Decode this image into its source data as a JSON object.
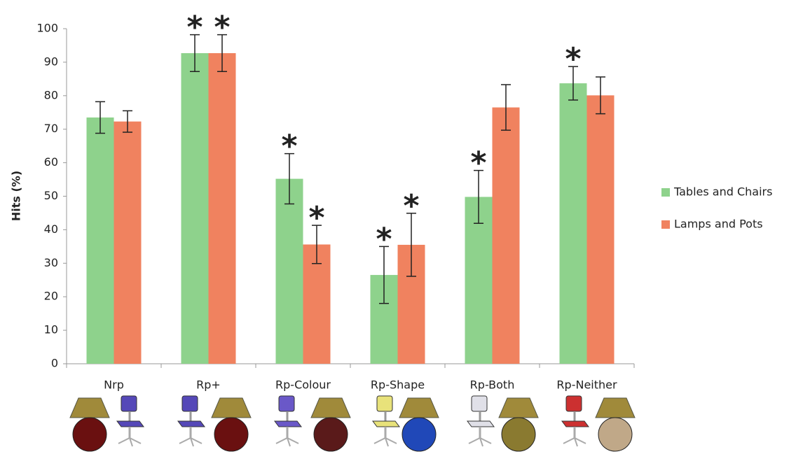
{
  "chart_data": {
    "type": "bar",
    "y_label": "Hits (%)",
    "categories": [
      "Nrp",
      "Rp+",
      "Rp-Colour",
      "Rp-Shape",
      "Rp-Both",
      "Rp-Neither"
    ],
    "series": [
      {
        "name": "Tables and Chairs",
        "color": "#8ed28c",
        "values": [
          73.5,
          92.7,
          55.2,
          26.5,
          49.8,
          83.7
        ],
        "errors": [
          4.7,
          5.5,
          7.5,
          8.5,
          7.9,
          5.0
        ],
        "marker_labels": [
          null,
          "*",
          "*",
          "*",
          "*",
          "*"
        ]
      },
      {
        "name": "Lamps and Pots",
        "color": "#f0825f",
        "values": [
          72.3,
          92.7,
          35.6,
          35.5,
          76.5,
          80.1
        ],
        "errors": [
          3.2,
          5.5,
          5.7,
          9.4,
          6.8,
          5.5
        ],
        "marker_labels": [
          null,
          "*",
          "*",
          "*",
          null,
          null
        ]
      }
    ],
    "ylim": [
      0,
      100
    ],
    "yticks": [
      0,
      10,
      20,
      30,
      40,
      50,
      60,
      70,
      80,
      90,
      100
    ],
    "grid": false,
    "legend": "right"
  }
}
